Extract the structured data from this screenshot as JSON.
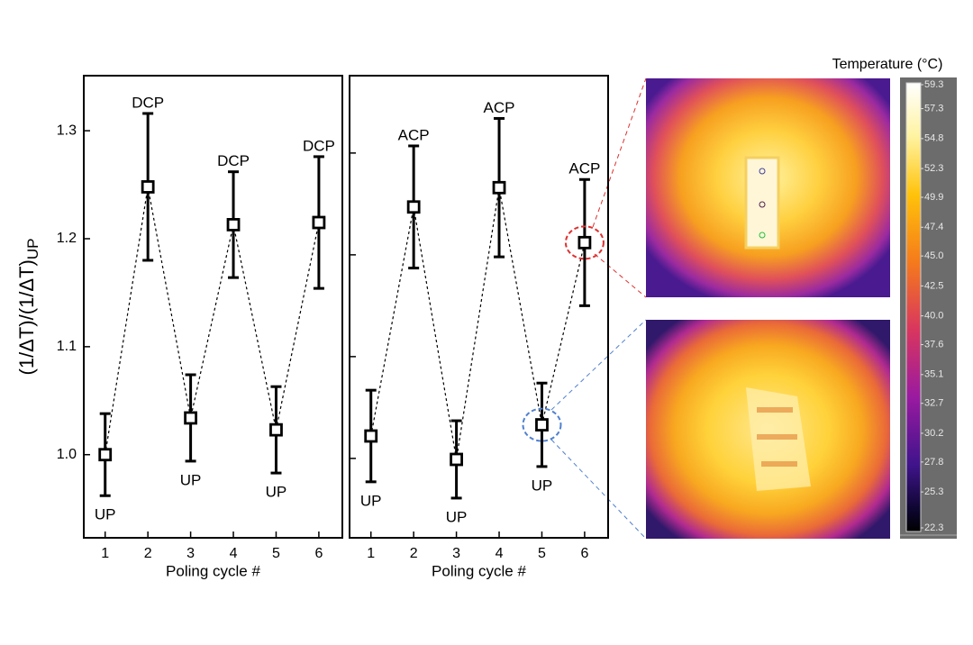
{
  "chart_data": [
    {
      "type": "errorbar",
      "x": [
        1,
        2,
        3,
        4,
        5,
        6
      ],
      "values": [
        1.0,
        1.248,
        1.034,
        1.213,
        1.023,
        1.215
      ],
      "errors": [
        0.038,
        0.068,
        0.04,
        0.049,
        0.04,
        0.061
      ],
      "point_labels": [
        "UP",
        "DCP",
        "UP",
        "DCP",
        "UP",
        "DCP"
      ],
      "xlim": [
        0.5,
        6.55
      ],
      "ylim": [
        0.923,
        1.351
      ],
      "xticks": [
        1,
        2,
        3,
        4,
        5,
        6
      ],
      "yticks": [
        {
          "value": 1.0,
          "label": "1.0"
        },
        1.1,
        1.2,
        1.3
      ],
      "ytick_labels": true,
      "xlabel": "Poling cycle #",
      "ylabel": "(1/ΔT)/(1/ΔT)",
      "ylabel_sub": "UP",
      "color": "#000000",
      "line_style": "dashed"
    },
    {
      "type": "errorbar",
      "x": [
        1,
        2,
        3,
        4,
        5,
        6
      ],
      "values": [
        1.022,
        1.247,
        0.999,
        1.266,
        1.033,
        1.212
      ],
      "errors": [
        0.045,
        0.06,
        0.038,
        0.068,
        0.041,
        0.062
      ],
      "point_labels": [
        "UP",
        "ACP",
        "UP",
        "ACP",
        "UP",
        "ACP"
      ],
      "xlim": [
        0.5,
        6.55
      ],
      "ylim": [
        0.922,
        1.376
      ],
      "xticks": [
        1,
        2,
        3,
        4,
        5,
        6
      ],
      "yticks": [
        1.0,
        1.1,
        1.2,
        1.3
      ],
      "ytick_labels": false,
      "xlabel": "Poling cycle #",
      "color": "#000000",
      "line_style": "dashed"
    },
    {
      "type": "colorbar",
      "title": "Temperature (°C)",
      "clim": [
        22.3,
        59.3
      ],
      "ticks": [
        59.3,
        57.3,
        54.8,
        52.3,
        49.9,
        47.4,
        {
          "value": 45,
          "label": "45.0"
        },
        42.5,
        {
          "value": 40,
          "label": "40.0"
        },
        37.6,
        35.1,
        32.7,
        30.2,
        27.8,
        25.3,
        22.3
      ]
    }
  ]
}
